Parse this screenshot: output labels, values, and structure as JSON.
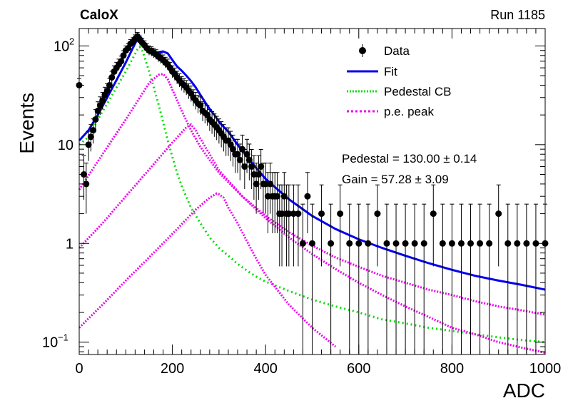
{
  "chart_data": {
    "type": "scatter",
    "title": "CaloX",
    "run_label": "Run 1185",
    "xlabel": "ADC",
    "ylabel": "Events",
    "xlim": [
      0,
      1000
    ],
    "ylim": [
      0.075,
      150
    ],
    "y_scale": "log",
    "grid": false,
    "legend_position": "top-right",
    "x_ticks": [
      {
        "value": 0,
        "label": "0"
      },
      {
        "value": 200,
        "label": "200"
      },
      {
        "value": 400,
        "label": "400"
      },
      {
        "value": 600,
        "label": "600"
      },
      {
        "value": 800,
        "label": "800"
      },
      {
        "value": 1000,
        "label": "1000"
      }
    ],
    "y_ticks": [
      {
        "value": 0.1,
        "base": "10",
        "exp": "−1"
      },
      {
        "value": 1,
        "label": "1"
      },
      {
        "value": 10,
        "label": "10"
      },
      {
        "value": 100,
        "base": "10",
        "exp": "2"
      }
    ],
    "stats": {
      "pedestal_text": "Pedestal = 130.00 ± 0.14",
      "gain_text": "Gain = 57.28 ± 3.09"
    },
    "fit_params": {
      "pedestal": 130.0,
      "gain": 57.28
    },
    "series": [
      {
        "name": "Data",
        "style": "markers",
        "color": "#000000",
        "x": [
          0,
          10,
          15,
          20,
          25,
          30,
          35,
          40,
          45,
          50,
          55,
          60,
          65,
          70,
          75,
          80,
          85,
          90,
          95,
          100,
          105,
          110,
          115,
          120,
          125,
          130,
          135,
          140,
          145,
          150,
          155,
          160,
          165,
          170,
          175,
          180,
          185,
          190,
          195,
          200,
          205,
          210,
          215,
          220,
          225,
          230,
          235,
          240,
          245,
          250,
          255,
          260,
          265,
          270,
          275,
          280,
          285,
          290,
          295,
          300,
          305,
          310,
          315,
          320,
          325,
          330,
          335,
          340,
          345,
          350,
          355,
          360,
          365,
          370,
          375,
          380,
          385,
          390,
          395,
          400,
          405,
          410,
          415,
          420,
          425,
          430,
          435,
          440,
          445,
          450,
          460,
          470,
          480,
          490,
          500,
          520,
          540,
          560,
          580,
          600,
          620,
          640,
          660,
          680,
          700,
          720,
          740,
          760,
          780,
          800,
          820,
          840,
          860,
          880,
          900,
          920,
          940,
          960,
          980,
          1000
        ],
        "y": [
          40,
          5,
          4,
          10,
          12,
          14,
          18,
          22,
          25,
          28,
          32,
          35,
          40,
          48,
          55,
          60,
          65,
          70,
          80,
          90,
          95,
          105,
          110,
          118,
          125,
          115,
          108,
          102,
          95,
          90,
          88,
          85,
          82,
          78,
          75,
          72,
          68,
          65,
          60,
          55,
          52,
          48,
          45,
          42,
          40,
          38,
          35,
          33,
          30,
          28,
          26,
          25,
          22,
          21,
          20,
          18,
          17,
          16,
          15,
          14,
          13,
          12,
          11,
          11,
          10,
          9,
          8,
          8,
          7,
          9,
          6,
          8,
          7,
          6,
          5,
          4,
          5,
          6,
          4,
          4,
          3,
          4,
          3,
          3,
          3,
          2,
          2,
          3,
          2,
          2,
          2,
          2,
          1,
          3,
          1,
          2,
          1,
          2,
          1,
          1,
          1,
          2,
          1,
          1,
          1,
          1,
          1,
          2,
          1,
          1,
          1,
          1,
          1,
          1,
          2,
          1,
          1,
          1,
          1,
          1
        ]
      },
      {
        "name": "Fit",
        "style": "line",
        "color": "#0000ee",
        "x": [
          0,
          20,
          40,
          60,
          80,
          100,
          115,
          125,
          130,
          135,
          140,
          150,
          160,
          170,
          180,
          190,
          200,
          210,
          220,
          230,
          240,
          250,
          260,
          270,
          280,
          290,
          300,
          320,
          340,
          360,
          380,
          400,
          450,
          500,
          550,
          600,
          650,
          700,
          750,
          800,
          850,
          900,
          950,
          1000
        ],
        "y": [
          11,
          14,
          20,
          30,
          45,
          68,
          95,
          118,
          124,
          118,
          100,
          88,
          84,
          86,
          88,
          84,
          72,
          62,
          56,
          50,
          44,
          38,
          32,
          27,
          23,
          20,
          17,
          13.5,
          10,
          7.6,
          5.8,
          4.5,
          2.8,
          1.9,
          1.4,
          1.1,
          0.9,
          0.75,
          0.63,
          0.54,
          0.47,
          0.42,
          0.38,
          0.34
        ]
      },
      {
        "name": "Pedestal CB",
        "style": "dotted",
        "color": "#00dd00",
        "x": [
          0,
          20,
          40,
          60,
          80,
          100,
          115,
          125,
          130,
          135,
          140,
          150,
          160,
          170,
          180,
          190,
          200,
          210,
          220,
          240,
          260,
          280,
          300,
          320,
          340,
          360,
          380,
          400,
          450,
          500,
          550,
          600,
          650,
          700,
          750,
          800,
          850,
          900,
          950,
          1000
        ],
        "y": [
          10,
          12,
          18,
          26,
          38,
          55,
          75,
          92,
          98,
          90,
          78,
          55,
          38,
          26,
          17,
          11,
          7.5,
          5.2,
          3.8,
          2.3,
          1.6,
          1.15,
          0.9,
          0.75,
          0.62,
          0.53,
          0.46,
          0.41,
          0.33,
          0.27,
          0.23,
          0.2,
          0.17,
          0.155,
          0.14,
          0.13,
          0.12,
          0.112,
          0.105,
          0.1
        ]
      },
      {
        "name": "p.e. peak",
        "style": "dotted",
        "color": "#ee00ee",
        "x": [
          0,
          50,
          100,
          150,
          170,
          180,
          190,
          200,
          220,
          240,
          260,
          280,
          300,
          350,
          400,
          450,
          500,
          550,
          600,
          650,
          700,
          750,
          800,
          850,
          900,
          950,
          1000
        ],
        "y": [
          3.5,
          8,
          18,
          42,
          51,
          52,
          46,
          36,
          22,
          14,
          9.5,
          7,
          5.2,
          3,
          1.9,
          1.3,
          0.95,
          0.72,
          0.58,
          0.47,
          0.4,
          0.34,
          0.3,
          0.26,
          0.23,
          0.21,
          0.19
        ]
      },
      {
        "name": "p.e. peak 2",
        "style": "dotted",
        "color": "#ee00ee",
        "x": [
          0,
          50,
          100,
          150,
          200,
          230,
          240,
          250,
          260,
          280,
          300,
          350,
          400,
          450,
          500,
          550,
          600,
          650,
          700,
          750,
          800,
          850,
          900,
          950,
          1000
        ],
        "y": [
          0.9,
          1.6,
          3,
          5.6,
          10.5,
          15,
          16,
          14,
          11.5,
          8,
          5.5,
          3,
          1.8,
          1.15,
          0.78,
          0.55,
          0.4,
          0.3,
          0.23,
          0.18,
          0.14,
          0.12,
          0.1,
          0.088,
          0.078
        ]
      },
      {
        "name": "p.e. peak 3",
        "style": "dotted",
        "color": "#ee00ee",
        "x": [
          0,
          50,
          100,
          150,
          200,
          250,
          280,
          295,
          300,
          310,
          320,
          340,
          360,
          380,
          400,
          450,
          500,
          550,
          600
        ],
        "y": [
          0.14,
          0.24,
          0.42,
          0.72,
          1.25,
          2.2,
          2.9,
          3.2,
          3.15,
          2.9,
          2.3,
          1.6,
          1.05,
          0.7,
          0.48,
          0.24,
          0.14,
          0.09,
          0.07
        ]
      }
    ]
  }
}
